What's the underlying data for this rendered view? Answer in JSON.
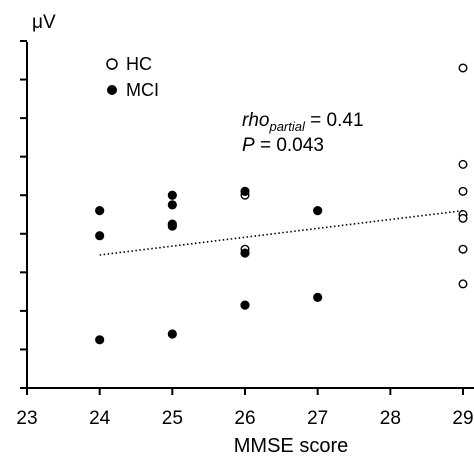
{
  "chart_data": {
    "type": "scatter",
    "title": "",
    "xlabel": "MMSE score",
    "ylabel": "μV",
    "xlim": [
      23,
      29
    ],
    "ylim": [
      0,
      9
    ],
    "x_ticks": [
      "23",
      "24",
      "25",
      "26",
      "27",
      "28",
      "29"
    ],
    "y_tick_count": 9,
    "grid": false,
    "legend_position": "top-left",
    "series": [
      {
        "name": "HC",
        "marker": "open-circle",
        "color": "#000000",
        "points": [
          {
            "x": 29,
            "y": 8.3
          },
          {
            "x": 29,
            "y": 5.8
          },
          {
            "x": 29,
            "y": 5.1
          },
          {
            "x": 29,
            "y": 4.5
          },
          {
            "x": 29,
            "y": 4.4
          },
          {
            "x": 29,
            "y": 3.6
          },
          {
            "x": 29,
            "y": 2.7
          },
          {
            "x": 26,
            "y": 5.0
          },
          {
            "x": 26,
            "y": 3.6
          }
        ]
      },
      {
        "name": "MCI",
        "marker": "filled-circle",
        "color": "#000000",
        "points": [
          {
            "x": 24,
            "y": 4.6
          },
          {
            "x": 24,
            "y": 3.95
          },
          {
            "x": 24,
            "y": 1.25
          },
          {
            "x": 25,
            "y": 5.0
          },
          {
            "x": 25,
            "y": 4.75
          },
          {
            "x": 25,
            "y": 4.25
          },
          {
            "x": 25,
            "y": 4.2
          },
          {
            "x": 25,
            "y": 1.4
          },
          {
            "x": 26,
            "y": 5.1
          },
          {
            "x": 26,
            "y": 3.5
          },
          {
            "x": 26,
            "y": 2.15
          },
          {
            "x": 27,
            "y": 4.6
          },
          {
            "x": 27,
            "y": 2.35
          }
        ]
      }
    ],
    "trendline": {
      "style": "dotted",
      "x": [
        24,
        29
      ],
      "y": [
        3.45,
        4.6
      ]
    },
    "annotations": {
      "rho_label": "rho",
      "rho_subscript": "partial",
      "rho_value": " = 0.41",
      "p_label": "P",
      "p_value": " = 0.043"
    }
  }
}
